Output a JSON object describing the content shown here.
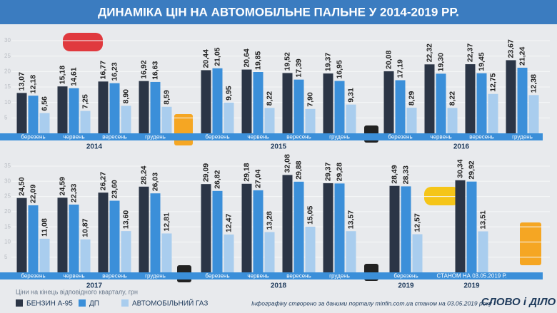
{
  "title": "ДИНАМІКА ЦІН НА АВТОМОБІЛЬНЕ ПАЛЬНЕ У 2014-2019 РР.",
  "note": "Ціни на кінець відповідного кварталу, грн",
  "source": "Інфографіку створено за даними порталу minfin.com.ua станом на 03.05.2019 року",
  "logo": "СЛОВО і ДІЛО",
  "legend": [
    {
      "name": "БЕНЗИН А-95",
      "color": "#2b3546"
    },
    {
      "name": "ДП",
      "color": "#3b8fd9"
    },
    {
      "name": "АВТОМОБІЛЬНИЙ ГАЗ",
      "color": "#a9cdee"
    }
  ],
  "chart_data": [
    {
      "type": "bar",
      "ylim": [
        0,
        30
      ],
      "yticks": [
        5,
        10,
        15,
        20,
        25,
        30
      ],
      "grid": true,
      "groups": [
        {
          "name": "2014",
          "categories": [
            "березень",
            "червень",
            "вересень",
            "грудень"
          ]
        },
        {
          "name": "2015",
          "categories": [
            "березень",
            "червень",
            "вересень",
            "грудень"
          ]
        },
        {
          "name": "2016",
          "categories": [
            "березень",
            "червень",
            "вересень",
            "грудень"
          ]
        }
      ],
      "series": [
        {
          "values": [
            13.07,
            15.18,
            16.77,
            16.92,
            20.44,
            20.64,
            19.52,
            19.37,
            20.08,
            22.32,
            22.37,
            23.67
          ],
          "value_labels": [
            "13,07",
            "15,18",
            "16,77",
            "16,92",
            "20,44",
            "20,64",
            "19,52",
            "19,37",
            "20,08",
            "22,32",
            "22,37",
            "23,67"
          ]
        },
        {
          "values": [
            12.18,
            14.61,
            16.23,
            16.63,
            21.05,
            19.85,
            17.39,
            16.95,
            17.19,
            19.3,
            19.45,
            21.24
          ],
          "value_labels": [
            "12,18",
            "14,61",
            "16,23",
            "16,63",
            "21,05",
            "19,85",
            "17,39",
            "16,95",
            "17,19",
            "19,30",
            "19,45",
            "21,24"
          ]
        },
        {
          "values": [
            6.56,
            7.25,
            8.9,
            8.59,
            9.95,
            8.22,
            7.9,
            9.31,
            8.29,
            8.22,
            12.75,
            12.38
          ],
          "value_labels": [
            "6,56",
            "7,25",
            "8,90",
            "8,59",
            "9,95",
            "8,22",
            "7,90",
            "9,31",
            "8,29",
            "8,22",
            "12,75",
            "12,38"
          ]
        }
      ]
    },
    {
      "type": "bar",
      "ylim": [
        0,
        35
      ],
      "yticks": [
        5,
        10,
        15,
        20,
        25,
        30,
        35
      ],
      "grid": true,
      "groups": [
        {
          "name": "2017",
          "categories": [
            "березень",
            "червень",
            "вересень",
            "грудень"
          ]
        },
        {
          "name": "2018",
          "categories": [
            "березень",
            "червень",
            "вересень",
            "грудень"
          ]
        },
        {
          "name": "2019",
          "categories": [
            "березень"
          ]
        },
        {
          "name": "2019",
          "categories": [
            "СТАНОМ НА 03.05.2019 Р."
          ]
        }
      ],
      "series": [
        {
          "values": [
            24.5,
            24.59,
            26.27,
            28.24,
            29.09,
            29.18,
            32.08,
            29.37,
            28.49,
            30.34
          ],
          "value_labels": [
            "24,50",
            "24,59",
            "26,27",
            "28,24",
            "29,09",
            "29,18",
            "32,08",
            "29,37",
            "28,49",
            "30,34"
          ]
        },
        {
          "values": [
            22.09,
            22.33,
            23.6,
            26.03,
            26.82,
            27.04,
            29.88,
            29.28,
            28.33,
            29.92
          ],
          "value_labels": [
            "22,09",
            "22,33",
            "23,60",
            "26,03",
            "26,82",
            "27,04",
            "29,88",
            "29,28",
            "28,33",
            "29,92"
          ]
        },
        {
          "values": [
            11.08,
            10.87,
            13.6,
            12.81,
            12.47,
            13.28,
            15.05,
            13.57,
            12.57,
            13.51
          ],
          "value_labels": [
            "11,08",
            "10,87",
            "13,60",
            "12,81",
            "12,47",
            "13,28",
            "15,05",
            "13,57",
            "12,57",
            "13,51"
          ]
        }
      ]
    }
  ]
}
